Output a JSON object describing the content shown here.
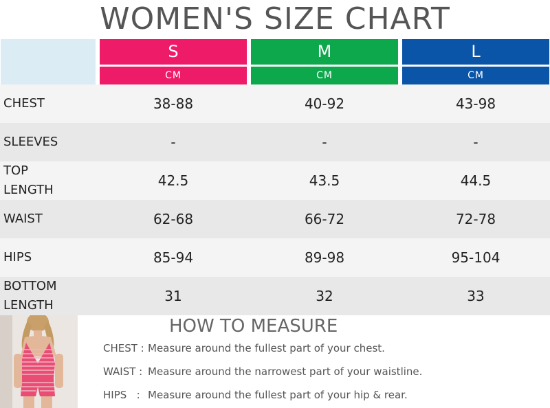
{
  "title": "WOMEN'S SIZE CHART",
  "sizes": [
    {
      "label": "S",
      "unit": "CM",
      "color": "#ee1c68"
    },
    {
      "label": "M",
      "unit": "CM",
      "color": "#0da84c"
    },
    {
      "label": "L",
      "unit": "CM",
      "color": "#0a55a8"
    }
  ],
  "rows": [
    {
      "label": "CHEST",
      "s": "38-88",
      "m": "40-92",
      "l": "43-98"
    },
    {
      "label": "SLEEVES",
      "s": "-",
      "m": "-",
      "l": "-"
    },
    {
      "label": "TOP\nLENGTH",
      "s": "42.5",
      "m": "43.5",
      "l": "44.5"
    },
    {
      "label": "WAIST",
      "s": "62-68",
      "m": "66-72",
      "l": "72-78"
    },
    {
      "label": "HIPS",
      "s": "85-94",
      "m": "89-98",
      "l": "95-104"
    },
    {
      "label": "BOTTOM\nLENGTH",
      "s": "31",
      "m": "32",
      "l": "33"
    }
  ],
  "how_to_measure": {
    "title": "HOW TO MEASURE",
    "items": [
      {
        "key": "CHEST :",
        "text": "Measure around the fullest part of your chest."
      },
      {
        "key": "WAIST :",
        "text": "Measure around the narrowest part of your waistline."
      },
      {
        "key": "HIPS   :",
        "text": "Measure around the fullest part of your hip & rear."
      }
    ]
  }
}
